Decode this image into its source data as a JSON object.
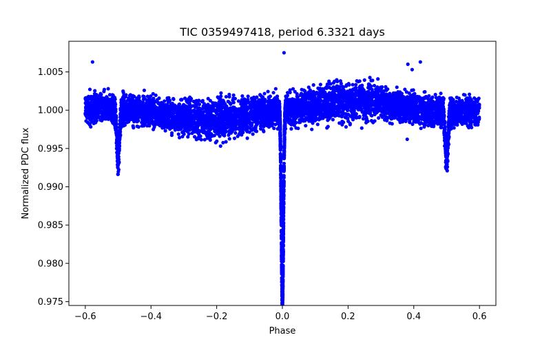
{
  "chart_data": {
    "type": "scatter",
    "title": "TIC 0359497418, period 6.3321 days",
    "xlabel": "Phase",
    "ylabel": "Normalized PDC flux",
    "xlim": [
      -0.65,
      0.65
    ],
    "ylim": [
      0.9745,
      1.009
    ],
    "xticks": [
      -0.6,
      -0.4,
      -0.2,
      0.0,
      0.2,
      0.4,
      0.6
    ],
    "xtick_labels": [
      "−0.6",
      "−0.4",
      "−0.2",
      "0.0",
      "0.2",
      "0.4",
      "0.6"
    ],
    "yticks": [
      0.975,
      0.98,
      0.985,
      0.99,
      0.995,
      1.0,
      1.005
    ],
    "ytick_labels": [
      "0.975",
      "0.980",
      "0.985",
      "0.990",
      "0.995",
      "1.000",
      "1.005"
    ],
    "grid": false,
    "series": [
      {
        "color": "#0000ff",
        "marker": "circle",
        "x_range": [
          -0.6,
          0.6
        ],
        "baseline_flux": 1.0,
        "scatter_halfwidth": 0.0022,
        "primary_eclipse": {
          "phase": 0.0,
          "min_flux": 0.975
        },
        "secondary_eclipses": [
          {
            "phase": -0.5,
            "min_flux": 0.9935
          },
          {
            "phase": 0.5,
            "min_flux": 0.9935
          }
        ],
        "points": [
          {
            "x": -0.578,
            "y": 1.0063
          },
          {
            "x": 0.42,
            "y": 1.0063
          },
          {
            "x": 0.382,
            "y": 1.006
          },
          {
            "x": 0.395,
            "y": 1.0053
          },
          {
            "x": 0.005,
            "y": 1.0075
          },
          {
            "x": 0.38,
            "y": 0.9962
          }
        ]
      }
    ]
  }
}
